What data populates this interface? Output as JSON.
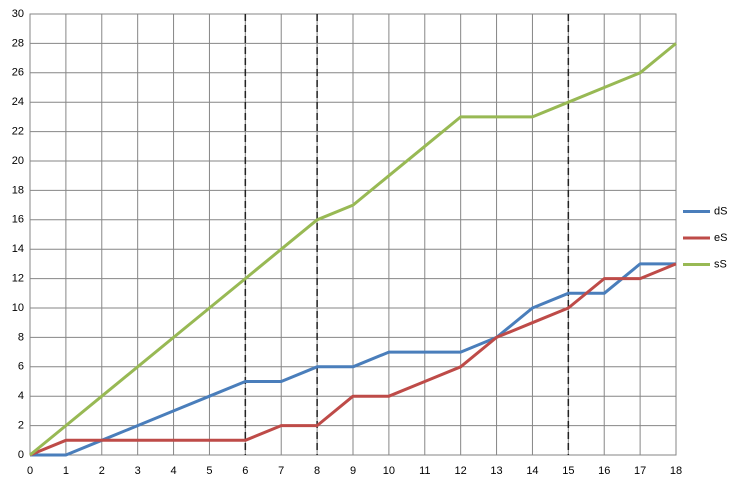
{
  "chart_data": {
    "type": "line",
    "x": [
      0,
      1,
      2,
      3,
      4,
      5,
      6,
      7,
      8,
      9,
      10,
      11,
      12,
      13,
      14,
      15,
      16,
      17,
      18
    ],
    "series": [
      {
        "name": "dS",
        "color": "#4a7ebb",
        "values": [
          0,
          0,
          1,
          2,
          3,
          4,
          5,
          5,
          6,
          6,
          7,
          7,
          7,
          8,
          10,
          11,
          11,
          13,
          13
        ]
      },
      {
        "name": "eS",
        "color": "#be4b48",
        "values": [
          0,
          1,
          1,
          1,
          1,
          1,
          1,
          2,
          2,
          4,
          4,
          5,
          6,
          8,
          9,
          10,
          12,
          12,
          13
        ]
      },
      {
        "name": "sS",
        "color": "#98b954",
        "values": [
          0,
          2,
          4,
          6,
          8,
          10,
          12,
          14,
          16,
          17,
          19,
          21,
          23,
          23,
          23,
          24,
          25,
          26,
          28
        ]
      }
    ],
    "xlim": [
      0,
      18
    ],
    "xticks": [
      0,
      1,
      2,
      3,
      4,
      5,
      6,
      7,
      8,
      9,
      10,
      11,
      12,
      13,
      14,
      15,
      16,
      17,
      18
    ],
    "ylim": [
      0,
      30
    ],
    "yticks": [
      0,
      2,
      4,
      6,
      8,
      10,
      12,
      14,
      16,
      18,
      20,
      22,
      24,
      26,
      28,
      30
    ],
    "grid": true,
    "legend": "right",
    "vlines": [
      6,
      8,
      15
    ]
  }
}
